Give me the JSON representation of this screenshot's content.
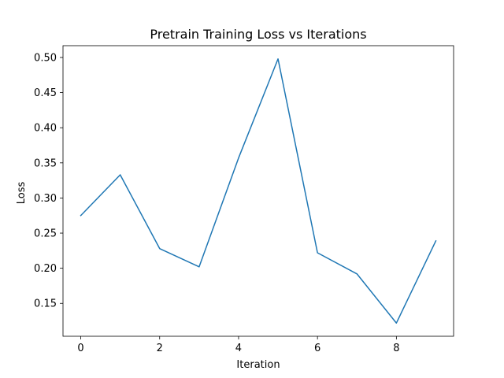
{
  "chart_data": {
    "type": "line",
    "title": "Pretrain Training Loss vs Iterations",
    "xlabel": "Iteration",
    "ylabel": "Loss",
    "x": [
      0,
      1,
      2,
      3,
      4,
      5,
      6,
      7,
      8,
      9
    ],
    "series": [
      {
        "values": [
          0.275,
          0.333,
          0.228,
          0.202,
          0.357,
          0.498,
          0.222,
          0.192,
          0.122,
          0.239
        ],
        "color": "#1f77b4"
      }
    ],
    "xlim": [
      -0.45,
      9.45
    ],
    "ylim": [
      0.1032,
      0.5168
    ],
    "xticks": [
      0,
      2,
      4,
      6,
      8
    ],
    "xtick_labels": [
      "0",
      "2",
      "4",
      "6",
      "8"
    ],
    "yticks": [
      0.15,
      0.2,
      0.25,
      0.3,
      0.35,
      0.4,
      0.45,
      0.5
    ],
    "ytick_labels": [
      "0.15",
      "0.20",
      "0.25",
      "0.30",
      "0.35",
      "0.40",
      "0.45",
      "0.50"
    ],
    "grid": false,
    "legend": "none"
  }
}
